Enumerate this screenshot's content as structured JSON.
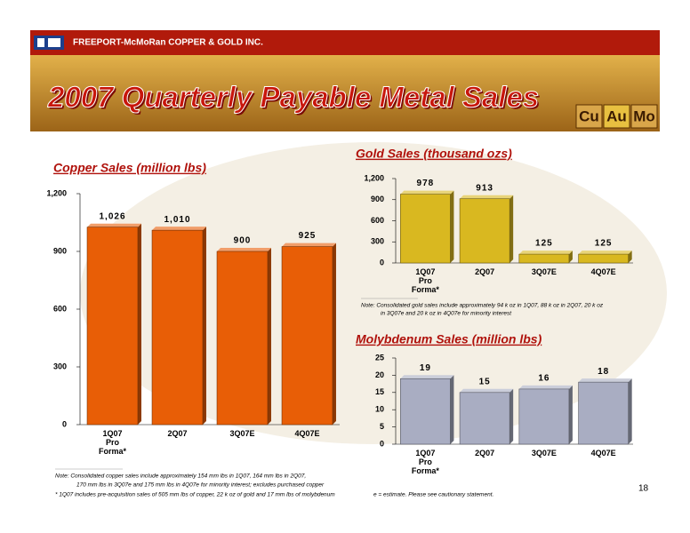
{
  "header": {
    "company": "FREEPORT-McMoRan COPPER & GOLD INC.",
    "title": "2007 Quarterly Payable Metal Sales",
    "badges": [
      "Cu",
      "Au",
      "Mo"
    ]
  },
  "page_number": "18",
  "notes": {
    "gold": [
      "Note:  Consolidated gold sales include approximately 94 k oz in 1Q07, 88 k oz in 2Q07, 20 k oz",
      "in 3Q07e and 20 k oz in 4Q07e for minority interest"
    ],
    "copper": [
      "Note:  Consolidated copper sales include approximately 154 mm lbs in 1Q07, 164 mm lbs in 2Q07,",
      "170 mm lbs in 3Q07e and 175 mm lbs in 4Q07e for minority interest; excludes purchased copper"
    ],
    "footnote": "* 1Q07 includes pre-acquisition sales of 505 mm lbs of copper, 22 k oz of gold and 17 mm lbs of molybdenum",
    "estimate": "e = estimate. Please see cautionary statement."
  },
  "chart_data": [
    {
      "type": "bar",
      "title": "Copper Sales (million lbs)",
      "categories": [
        "1Q07 Pro Forma*",
        "2Q07",
        "3Q07E",
        "4Q07E"
      ],
      "values": [
        1026,
        1010,
        900,
        925
      ],
      "value_labels": [
        "1,026",
        "1,010",
        "900",
        "925"
      ],
      "color": "#e85e06",
      "ylim": [
        0,
        1200
      ],
      "yticks": [
        0,
        300,
        600,
        900,
        {
          "value": 1200,
          "label": "1,200"
        }
      ]
    },
    {
      "type": "bar",
      "title": "Gold Sales (thousand ozs)",
      "categories": [
        "1Q07 Pro Forma*",
        "2Q07",
        "3Q07E",
        "4Q07E"
      ],
      "values": [
        978,
        913,
        125,
        125
      ],
      "color": "#d9b820",
      "ylim": [
        0,
        1200
      ],
      "yticks": [
        0,
        300,
        600,
        900,
        {
          "value": 1200,
          "label": "1,200"
        }
      ]
    },
    {
      "type": "bar",
      "title": "Molybdenum Sales (million lbs)",
      "categories": [
        "1Q07 Pro Forma*",
        "2Q07",
        "3Q07E",
        "4Q07E"
      ],
      "values": [
        19,
        15,
        16,
        18
      ],
      "color": "#a9adc2",
      "ylim": [
        0,
        25
      ],
      "yticks": [
        0,
        5,
        10,
        15,
        20,
        25
      ]
    }
  ]
}
